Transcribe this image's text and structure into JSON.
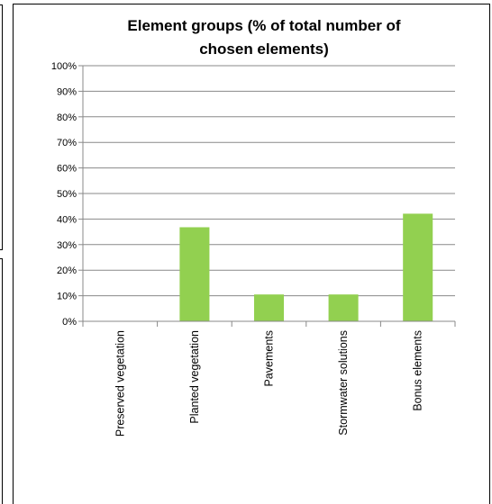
{
  "colors": {
    "bar": "#92d050",
    "grid": "#898989",
    "axis": "#898989",
    "frame": "#000000"
  },
  "chart_data": {
    "type": "bar",
    "title_lines": [
      "Element groups (% of total number of",
      "chosen elements)"
    ],
    "categories": [
      "Preserved vegetation",
      "Planted vegetation",
      "Pavements",
      "Stormwater solutions",
      "Bonus elements"
    ],
    "values": [
      0,
      36.8,
      10.5,
      10.5,
      42.1
    ],
    "ylim": [
      0,
      100
    ],
    "yticks": [
      "0%",
      "10%",
      "20%",
      "30%",
      "40%",
      "50%",
      "60%",
      "70%",
      "80%",
      "90%",
      "100%"
    ],
    "grid": true,
    "legend": "none"
  }
}
